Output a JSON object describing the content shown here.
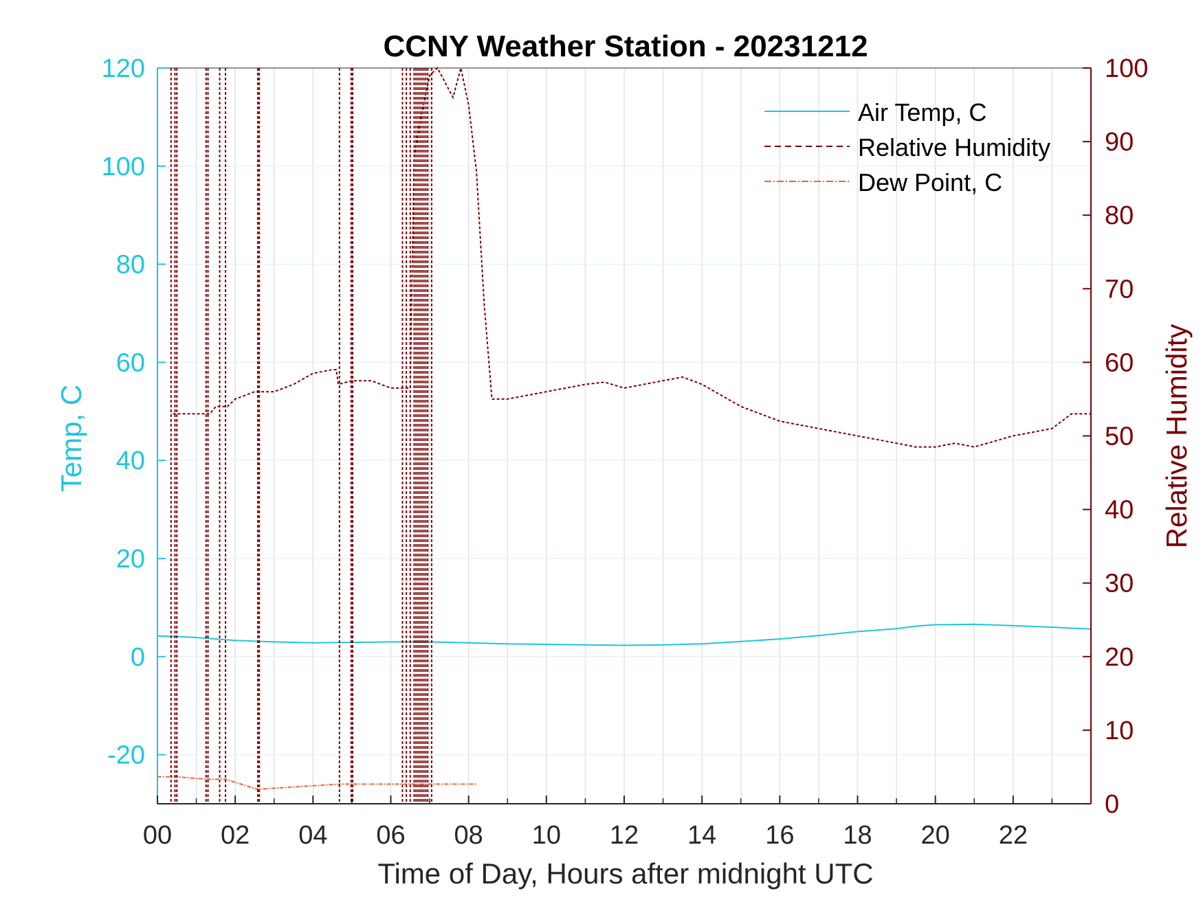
{
  "colors": {
    "air_temp": "#1fc6db",
    "relative_humidity": "#7a0000",
    "dew_point": "#e8643a",
    "grid": "#dfe3e8",
    "axis_x": "#262626"
  },
  "chart_data": {
    "type": "line",
    "title": "CCNY Weather Station - 20231212",
    "xlabel": "Time of Day, Hours after midnight UTC",
    "ylabel_left": "Temp, C",
    "ylabel_right": "Relative Humidity",
    "xlim": [
      0,
      24
    ],
    "ylim_left": [
      -30,
      120
    ],
    "ylim_right": [
      0,
      100
    ],
    "x_ticks": [
      0,
      2,
      4,
      6,
      8,
      10,
      12,
      14,
      16,
      18,
      20,
      22
    ],
    "x_tick_labels": [
      "00",
      "02",
      "04",
      "06",
      "08",
      "10",
      "12",
      "14",
      "16",
      "18",
      "20",
      "22"
    ],
    "y_left_ticks": [
      120,
      100,
      80,
      60,
      40,
      20,
      0,
      -20
    ],
    "y_left_tick_labels": [
      "120",
      "100",
      "80",
      "60",
      "40",
      "20",
      "0",
      "-20"
    ],
    "y_right_ticks": [
      100,
      90,
      80,
      70,
      60,
      50,
      40,
      30,
      20,
      10,
      0
    ],
    "y_right_tick_labels": [
      "100",
      "90",
      "80",
      "70",
      "60",
      "50",
      "40",
      "30",
      "20",
      "10",
      "0"
    ],
    "grid": true,
    "legend_position": "top-right",
    "legend": [
      "Air Temp, C",
      "Relative Humidity",
      "Dew Point, C"
    ],
    "series": [
      {
        "name": "Air Temp, C",
        "axis": "left",
        "style": "solid",
        "x": [
          0,
          0.5,
          1,
          1.5,
          2,
          3,
          4,
          5,
          6,
          7,
          8,
          9,
          10,
          11,
          12,
          13,
          14,
          15,
          16,
          17,
          18,
          19,
          19.5,
          20,
          21,
          22,
          23,
          24
        ],
        "values": [
          4.2,
          4.1,
          3.9,
          3.6,
          3.3,
          3.0,
          2.8,
          2.9,
          3.0,
          3.0,
          2.8,
          2.6,
          2.5,
          2.4,
          2.3,
          2.4,
          2.6,
          3.1,
          3.6,
          4.3,
          5.1,
          5.7,
          6.2,
          6.5,
          6.6,
          6.3,
          6.0,
          5.6
        ]
      },
      {
        "name": "Relative Humidity",
        "axis": "right",
        "style": "dashed",
        "x": [
          0.4,
          0.42,
          0.5,
          0.52,
          1.0,
          1.2,
          1.3,
          1.35,
          1.5,
          1.6,
          1.65,
          1.8,
          2.0,
          2.5,
          2.6,
          2.65,
          3.0,
          3.5,
          4.0,
          4.5,
          4.6,
          4.65,
          5.0,
          5.1,
          5.5,
          6.0,
          6.4,
          6.5,
          6.6,
          6.8,
          7.0,
          7.2,
          7.4,
          7.6,
          7.8,
          8.0,
          8.2,
          8.4,
          8.6,
          9.0,
          10.0,
          11.0,
          11.5,
          12.0,
          13.0,
          13.5,
          14.0,
          15.0,
          15.5,
          16.0,
          17.0,
          18.0,
          19.0,
          19.5,
          20.0,
          20.5,
          21.0,
          22.0,
          23.0,
          23.5,
          24.0
        ],
        "values": [
          53,
          53,
          53,
          53,
          53,
          53,
          53,
          53,
          54,
          54,
          54,
          54,
          55,
          56,
          56,
          56,
          56,
          57,
          58.5,
          59,
          59,
          57,
          57.5,
          57.5,
          57.5,
          56.5,
          56.5,
          56.5,
          88,
          94,
          99,
          100,
          98,
          96,
          100,
          95,
          86,
          68,
          55,
          55,
          56,
          57,
          57.3,
          56.5,
          57.5,
          58,
          57,
          54,
          53,
          52,
          51,
          50,
          49,
          48.5,
          48.5,
          49,
          48.5,
          50,
          51,
          53,
          53
        ]
      },
      {
        "name": "Dew Point, C",
        "axis": "left",
        "style": "dash-dot",
        "x": [
          0,
          0.5,
          1.25,
          1.75,
          2.55,
          2.65,
          4.7,
          5.0,
          6.35,
          6.8,
          7.0,
          8.2
        ],
        "values": [
          -24.5,
          -24.5,
          -25,
          -25,
          -27,
          -27,
          -26,
          -26,
          -26,
          -26,
          -26,
          -26
        ]
      }
    ],
    "annotations": [
      "Relative Humidity shows repeated dropouts near 00:20, 01:15, 01:40, 02:35, 04:45, 05:00 and between 06:20 and 07:10 (spikes off scale)"
    ]
  }
}
